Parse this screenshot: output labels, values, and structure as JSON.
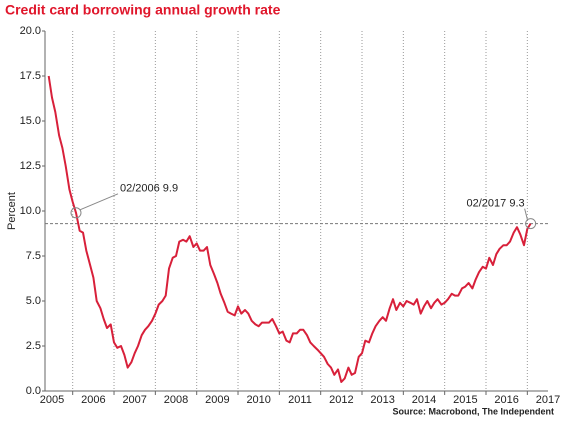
{
  "chart_data": {
    "type": "line",
    "title": "Credit card borrowing annual growth rate",
    "ylabel": "Percent",
    "source": "Source: Macrobond, The Independent",
    "x": [
      2005.42,
      2005.5,
      2005.58,
      2005.67,
      2005.75,
      2005.83,
      2005.92,
      2006,
      2006.08,
      2006.17,
      2006.25,
      2006.33,
      2006.42,
      2006.5,
      2006.58,
      2006.67,
      2006.75,
      2006.83,
      2006.92,
      2007,
      2007.08,
      2007.17,
      2007.25,
      2007.33,
      2007.42,
      2007.5,
      2007.58,
      2007.67,
      2007.75,
      2007.83,
      2007.92,
      2008,
      2008.08,
      2008.17,
      2008.25,
      2008.33,
      2008.42,
      2008.5,
      2008.58,
      2008.67,
      2008.75,
      2008.83,
      2008.92,
      2009,
      2009.08,
      2009.17,
      2009.25,
      2009.33,
      2009.42,
      2009.5,
      2009.58,
      2009.67,
      2009.75,
      2009.83,
      2009.92,
      2010,
      2010.08,
      2010.17,
      2010.25,
      2010.33,
      2010.42,
      2010.5,
      2010.58,
      2010.67,
      2010.75,
      2010.83,
      2010.92,
      2011,
      2011.08,
      2011.17,
      2011.25,
      2011.33,
      2011.42,
      2011.5,
      2011.58,
      2011.67,
      2011.75,
      2011.83,
      2011.92,
      2012,
      2012.08,
      2012.17,
      2012.25,
      2012.33,
      2012.42,
      2012.5,
      2012.58,
      2012.67,
      2012.75,
      2012.83,
      2012.92,
      2013,
      2013.08,
      2013.17,
      2013.25,
      2013.33,
      2013.42,
      2013.5,
      2013.58,
      2013.67,
      2013.75,
      2013.83,
      2013.92,
      2014,
      2014.08,
      2014.17,
      2014.25,
      2014.33,
      2014.42,
      2014.5,
      2014.58,
      2014.67,
      2014.75,
      2014.83,
      2014.92,
      2015,
      2015.08,
      2015.17,
      2015.25,
      2015.33,
      2015.42,
      2015.5,
      2015.58,
      2015.67,
      2015.75,
      2015.83,
      2015.92,
      2016,
      2016.08,
      2016.17,
      2016.25,
      2016.33,
      2016.42,
      2016.5,
      2016.58,
      2016.67,
      2016.75,
      2016.83,
      2016.92,
      2017,
      2017.08
    ],
    "series": [
      {
        "name": "Credit card borrowing annual growth rate",
        "color": "#d8203a",
        "values": [
          17.5,
          16.3,
          15.5,
          14.2,
          13.5,
          12.5,
          11.2,
          10.5,
          9.9,
          8.9,
          8.8,
          7.8,
          7.0,
          6.3,
          5.0,
          4.6,
          4.0,
          3.5,
          3.7,
          2.7,
          2.4,
          2.5,
          2.0,
          1.3,
          1.6,
          2.1,
          2.5,
          3.1,
          3.4,
          3.6,
          3.9,
          4.3,
          4.8,
          5.0,
          5.3,
          6.8,
          7.4,
          7.5,
          8.3,
          8.4,
          8.3,
          8.6,
          8.0,
          8.2,
          7.8,
          7.8,
          8.0,
          7.0,
          6.5,
          6.0,
          5.4,
          4.9,
          4.4,
          4.3,
          4.2,
          4.7,
          4.3,
          4.5,
          4.3,
          3.9,
          3.7,
          3.6,
          3.8,
          3.8,
          3.8,
          4.0,
          3.6,
          3.2,
          3.3,
          2.8,
          2.7,
          3.2,
          3.2,
          3.4,
          3.4,
          3.1,
          2.7,
          2.5,
          2.3,
          2.1,
          1.9,
          1.5,
          1.3,
          0.9,
          1.2,
          0.5,
          0.7,
          1.3,
          0.9,
          1.0,
          1.9,
          2.1,
          2.8,
          2.7,
          3.2,
          3.6,
          3.9,
          4.1,
          3.9,
          4.6,
          5.1,
          4.5,
          4.9,
          4.7,
          5.0,
          4.9,
          4.8,
          5.1,
          4.3,
          4.7,
          5.0,
          4.6,
          4.9,
          5.1,
          4.8,
          4.9,
          5.1,
          5.4,
          5.3,
          5.3,
          5.7,
          5.8,
          6.0,
          5.7,
          6.2,
          6.6,
          6.9,
          6.8,
          7.4,
          7.0,
          7.6,
          7.9,
          8.1,
          8.1,
          8.3,
          8.8,
          9.1,
          8.7,
          8.1,
          9.0,
          9.3
        ]
      }
    ],
    "reference_line": 9.3,
    "annotations": [
      {
        "label": "02/2006 9.9",
        "x": 2006.08,
        "y": 9.9
      },
      {
        "label": "02/2017 9.3",
        "x": 2017.08,
        "y": 9.3
      }
    ],
    "xlim": [
      2005.33,
      2017.5
    ],
    "xticks": [
      {
        "value": 2005.5,
        "label": "2005"
      },
      {
        "value": 2006.5,
        "label": "2006"
      },
      {
        "value": 2007.5,
        "label": "2007"
      },
      {
        "value": 2008.5,
        "label": "2008"
      },
      {
        "value": 2009.5,
        "label": "2009"
      },
      {
        "value": 2010.5,
        "label": "2010"
      },
      {
        "value": 2011.5,
        "label": "2011"
      },
      {
        "value": 2012.5,
        "label": "2012"
      },
      {
        "value": 2013.5,
        "label": "2013"
      },
      {
        "value": 2014.5,
        "label": "2014"
      },
      {
        "value": 2015.5,
        "label": "2015"
      },
      {
        "value": 2016.5,
        "label": "2016"
      },
      {
        "value": 2017.5,
        "label": "2017"
      }
    ],
    "ylim": [
      0,
      20
    ],
    "yticks": [
      {
        "value": 0,
        "label": "0.0"
      },
      2.5,
      {
        "value": 5,
        "label": "5.0"
      },
      7.5,
      {
        "value": 10,
        "label": "10.0"
      },
      12.5,
      {
        "value": 15,
        "label": "15.0"
      },
      17.5,
      {
        "value": 20,
        "label": "20.0"
      }
    ],
    "grid": true
  }
}
